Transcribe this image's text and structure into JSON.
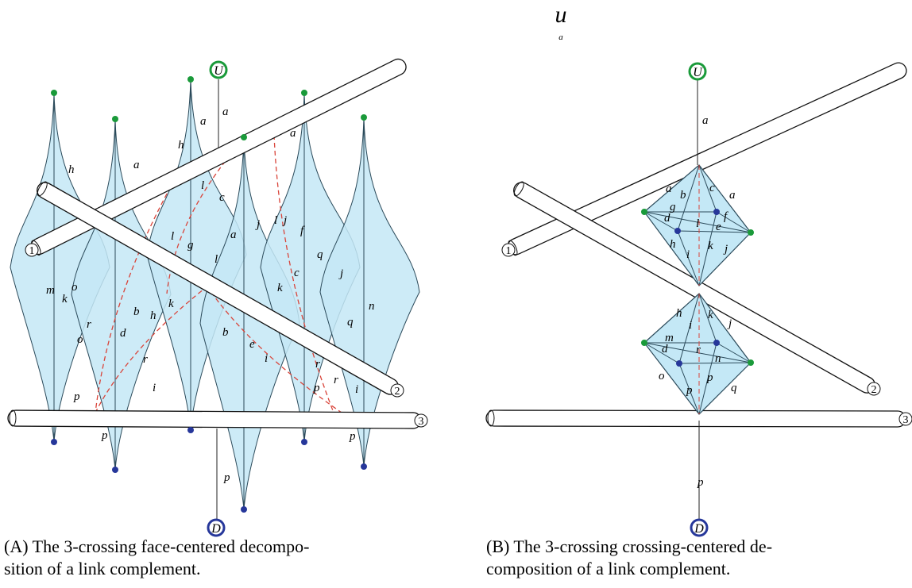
{
  "header": {
    "symbol": "u",
    "subscript": "a"
  },
  "panels": [
    {
      "top_label": "U",
      "bottom_label": "D",
      "tubes": [
        "1",
        "2",
        "3"
      ],
      "face_labels": [
        "a",
        "h",
        "a",
        "h",
        "a",
        "l",
        "c",
        "l",
        "g",
        "a",
        "j",
        "l",
        "j",
        "f",
        "q",
        "a",
        "m",
        "o",
        "k",
        "o",
        "r",
        "d",
        "b",
        "h",
        "k",
        "l",
        "r",
        "i",
        "b",
        "e",
        "i",
        "k",
        "c",
        "j",
        "n",
        "q",
        "r",
        "p",
        "r",
        "i",
        "p",
        "p",
        "p",
        "p"
      ],
      "caption": [
        "(A) The 3-crossing face-centered decompo-",
        "sition of a link complement."
      ]
    },
    {
      "top_label": "U",
      "bottom_label": "D",
      "tubes": [
        "1",
        "2",
        "3"
      ],
      "face_labels": [
        "a",
        "a",
        "b",
        "c",
        "a",
        "g",
        "d",
        "l",
        "f",
        "e",
        "h",
        "i",
        "k",
        "j",
        "h",
        "i",
        "k",
        "j",
        "m",
        "d",
        "r",
        "n",
        "o",
        "p",
        "p",
        "q",
        "p"
      ],
      "caption": [
        "(B) The 3-crossing crossing-centered de-",
        "composition of a link complement."
      ]
    }
  ]
}
